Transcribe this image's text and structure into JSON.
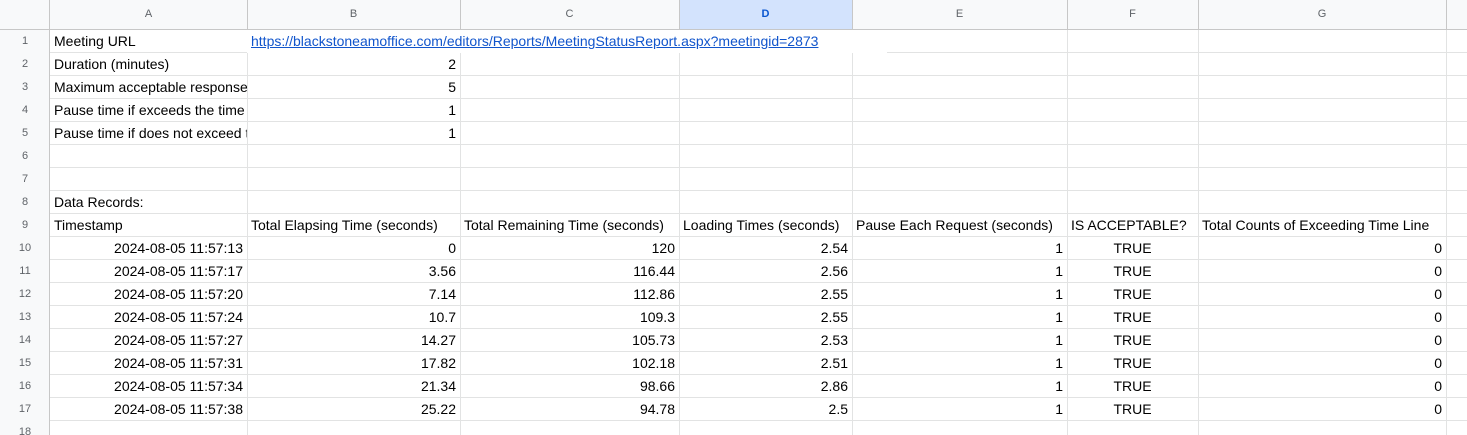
{
  "columns": [
    "A",
    "B",
    "C",
    "D",
    "E",
    "F",
    "G"
  ],
  "selected_column": "D",
  "rows": [
    "1",
    "2",
    "3",
    "4",
    "5",
    "6",
    "7",
    "8",
    "9",
    "10",
    "11",
    "12",
    "13",
    "14",
    "15",
    "16",
    "17",
    "18"
  ],
  "params": {
    "meeting_url_label": "Meeting URL",
    "meeting_url": "https://blackstoneamoffice.com/editors/Reports/MeetingStatusReport.aspx?meetingid=2873",
    "duration_label": "Duration (minutes)",
    "duration_value": "2",
    "max_response_label": "Maximum acceptable response time (seconds)",
    "max_response_value": "5",
    "pause_exceeds_label": "Pause time if exceeds the time line (seconds)",
    "pause_exceeds_value": "1",
    "pause_not_exceeds_label": "Pause time if does not exceed the time line (seconds)",
    "pause_not_exceeds_value": "1"
  },
  "data_records_label": "Data Records:",
  "table": {
    "headers": [
      "Timestamp",
      "Total Elapsing Time (seconds)",
      "Total Remaining Time (seconds)",
      "Loading Times (seconds)",
      "Pause Each Request (seconds)",
      "IS ACCEPTABLE?",
      "Total Counts of Exceeding Time Line"
    ],
    "rows": [
      [
        "2024-08-05 11:57:13",
        "0",
        "120",
        "2.54",
        "1",
        "TRUE",
        "0"
      ],
      [
        "2024-08-05 11:57:17",
        "3.56",
        "116.44",
        "2.56",
        "1",
        "TRUE",
        "0"
      ],
      [
        "2024-08-05 11:57:20",
        "7.14",
        "112.86",
        "2.55",
        "1",
        "TRUE",
        "0"
      ],
      [
        "2024-08-05 11:57:24",
        "10.7",
        "109.3",
        "2.55",
        "1",
        "TRUE",
        "0"
      ],
      [
        "2024-08-05 11:57:27",
        "14.27",
        "105.73",
        "2.53",
        "1",
        "TRUE",
        "0"
      ],
      [
        "2024-08-05 11:57:31",
        "17.82",
        "102.18",
        "2.51",
        "1",
        "TRUE",
        "0"
      ],
      [
        "2024-08-05 11:57:34",
        "21.34",
        "98.66",
        "2.86",
        "1",
        "TRUE",
        "0"
      ],
      [
        "2024-08-05 11:57:38",
        "25.22",
        "94.78",
        "2.5",
        "1",
        "TRUE",
        "0"
      ]
    ]
  }
}
